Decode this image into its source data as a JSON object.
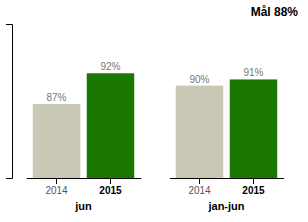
{
  "chart_data": {
    "type": "bar",
    "categories": [
      "jun",
      "jan-jun"
    ],
    "series": [
      {
        "name": "2014",
        "color": "#c8c8b4",
        "values": [
          87,
          90
        ],
        "value_labels": [
          "87%",
          "90%"
        ]
      },
      {
        "name": "2015",
        "color": "#1a7800",
        "values": [
          92,
          91
        ],
        "value_labels": [
          "92%",
          "91%"
        ]
      }
    ],
    "annotations": [
      "Mål 88%"
    ],
    "ylim": [
      75,
      100
    ],
    "data_labels": true,
    "tick_labels": "x"
  }
}
